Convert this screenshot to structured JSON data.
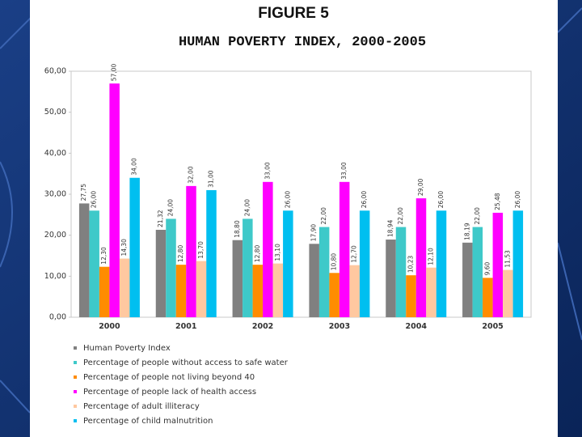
{
  "chart_data": {
    "type": "bar",
    "title": "FIGURE 5",
    "subtitle": "HUMAN POVERTY INDEX, 2000-2005",
    "categories": [
      "2000",
      "2001",
      "2002",
      "2003",
      "2004",
      "2005"
    ],
    "series": [
      {
        "name": "Human Poverty Index",
        "color": "#808080",
        "values": [
          27.75,
          21.32,
          18.8,
          17.9,
          18.94,
          18.19
        ],
        "value_labels": [
          "27,75",
          "21,32",
          "18,80",
          "17,90",
          "18,94",
          "18,19"
        ]
      },
      {
        "name": "Percentage of people without access to safe water",
        "color": "#3ec9c9",
        "values": [
          26,
          24,
          24,
          22,
          22,
          22
        ],
        "value_labels": [
          "26,00",
          "24,00",
          "24,00",
          "22,00",
          "22,00",
          "22,00"
        ]
      },
      {
        "name": "Percentage of people not living beyond 40",
        "color": "#ff8c00",
        "values": [
          12.3,
          12.8,
          12.8,
          10.8,
          10.23,
          9.6
        ],
        "value_labels": [
          "12,30",
          "12,80",
          "12,80",
          "10,80",
          "10,23",
          "9,60"
        ]
      },
      {
        "name": "Percentage of people lack of health access",
        "color": "#ff00ff",
        "values": [
          57,
          32,
          33,
          33,
          29,
          25.48
        ],
        "value_labels": [
          "57,00",
          "32,00",
          "33,00",
          "33,00",
          "29,00",
          "25,48"
        ]
      },
      {
        "name": "Percentage of adult illiteracy",
        "color": "#ffc8a0",
        "values": [
          14.3,
          13.7,
          13.1,
          12.7,
          12.1,
          11.53
        ],
        "value_labels": [
          "14,30",
          "13,70",
          "13,10",
          "12,70",
          "12,10",
          "11,53"
        ]
      },
      {
        "name": "Percentage of child malnutrition",
        "color": "#00bff0",
        "values": [
          34,
          31,
          26,
          26,
          26,
          26
        ],
        "value_labels": [
          "34,00",
          "31,00",
          "26,00",
          "26,00",
          "26,00",
          "26,00"
        ]
      }
    ],
    "ylim": [
      0,
      60
    ],
    "yticks": [
      {
        "value": 0,
        "label": "0,00"
      },
      {
        "value": 10,
        "label": "10,00"
      },
      {
        "value": 20,
        "label": "20,00"
      },
      {
        "value": 30,
        "label": "30,00"
      },
      {
        "value": 40,
        "label": "40,00"
      },
      {
        "value": 50,
        "label": "50,00"
      },
      {
        "value": 60,
        "label": "60,00"
      }
    ],
    "grid": false
  }
}
